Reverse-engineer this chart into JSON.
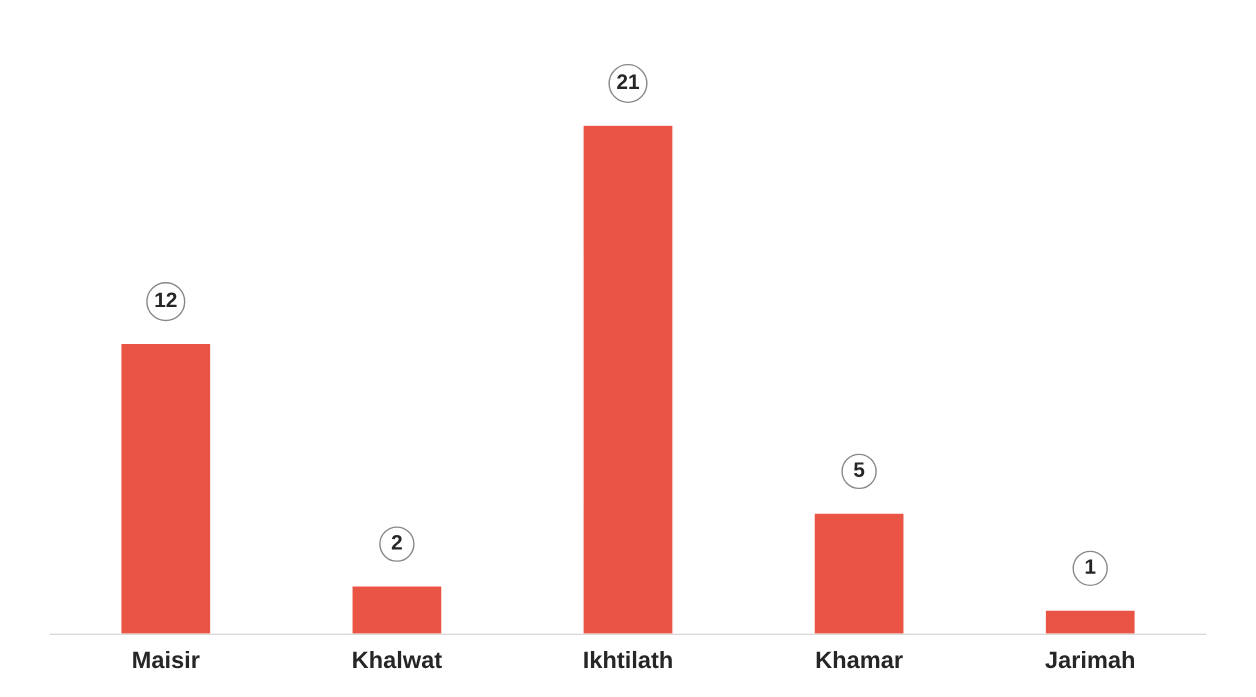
{
  "chart_data": {
    "type": "bar",
    "categories": [
      "Maisir",
      "Khalwat",
      "Ikhtilath",
      "Khamar",
      "Jarimah"
    ],
    "values": [
      12,
      2,
      21,
      5,
      1
    ],
    "color": "#ea5444",
    "data_labels": true,
    "grid": false
  }
}
